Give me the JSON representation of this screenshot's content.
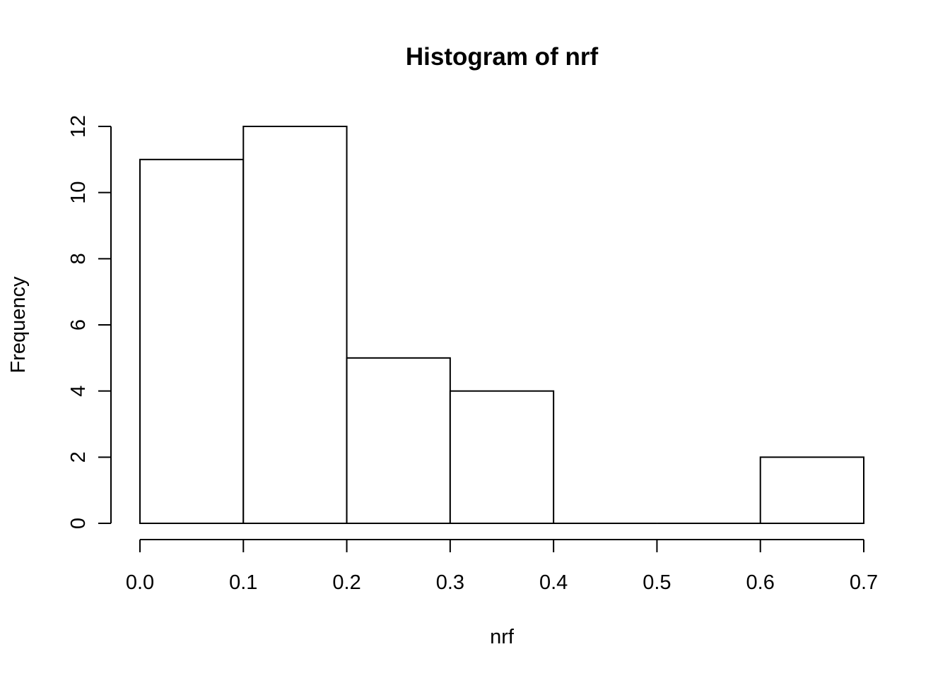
{
  "chart_data": {
    "type": "bar",
    "title": "Histogram of nrf",
    "xlabel": "nrf",
    "ylabel": "Frequency",
    "bins": [
      {
        "start": 0.0,
        "end": 0.1,
        "count": 11
      },
      {
        "start": 0.1,
        "end": 0.2,
        "count": 12
      },
      {
        "start": 0.2,
        "end": 0.3,
        "count": 5
      },
      {
        "start": 0.3,
        "end": 0.4,
        "count": 4
      },
      {
        "start": 0.4,
        "end": 0.5,
        "count": 0
      },
      {
        "start": 0.5,
        "end": 0.6,
        "count": 0
      },
      {
        "start": 0.6,
        "end": 0.7,
        "count": 2
      }
    ],
    "xlim": [
      0.0,
      0.7
    ],
    "ylim": [
      0,
      12
    ],
    "x_ticks": [
      "0.0",
      "0.1",
      "0.2",
      "0.3",
      "0.4",
      "0.5",
      "0.6",
      "0.7"
    ],
    "y_ticks": [
      "0",
      "2",
      "4",
      "6",
      "8",
      "10",
      "12"
    ],
    "grid": false,
    "colors": {
      "bar_fill": "#ffffff",
      "bar_stroke": "#000000"
    }
  }
}
